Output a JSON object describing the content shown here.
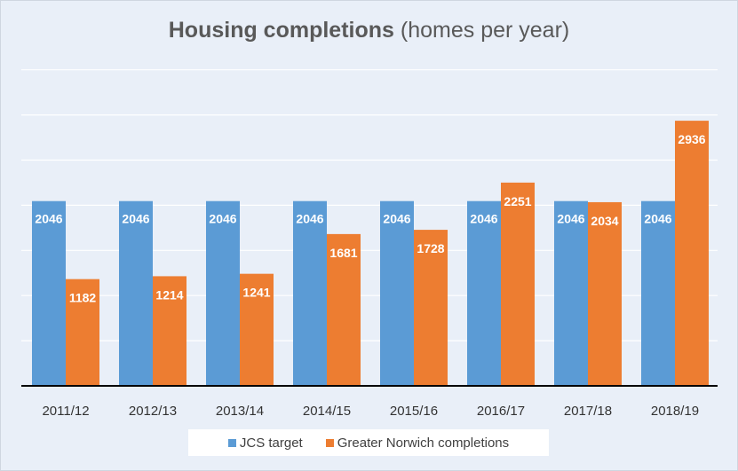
{
  "chart_data": {
    "type": "bar",
    "title_bold": "Housing completions",
    "title_rest": "(homes per year)",
    "categories": [
      "2011/12",
      "2012/13",
      "2013/14",
      "2014/15",
      "2015/16",
      "2016/17",
      "2017/18",
      "2018/19"
    ],
    "series": [
      {
        "name": "JCS target",
        "color": "#5b9bd5",
        "values": [
          2046,
          2046,
          2046,
          2046,
          2046,
          2046,
          2046,
          2046
        ]
      },
      {
        "name": "Greater Norwich completions",
        "color": "#ed7d31",
        "values": [
          1182,
          1214,
          1241,
          1681,
          1728,
          2251,
          2034,
          2936
        ]
      }
    ],
    "ylim": [
      0,
      3500
    ],
    "gridline_step": 500,
    "grid": true,
    "axis_labels_visible": false,
    "data_labels": true,
    "legend_position": "bottom"
  }
}
